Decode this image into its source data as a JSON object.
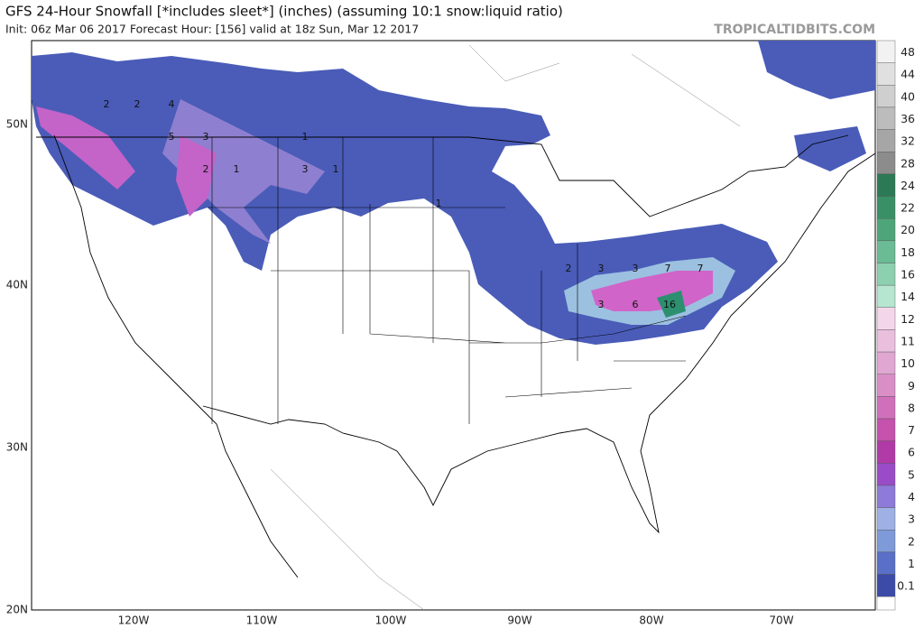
{
  "header": {
    "title": "GFS 24-Hour Snowfall [*includes sleet*] (inches) (assuming 10:1 snow:liquid ratio)",
    "subtitle": "Init: 06z Mar 06 2017   Forecast Hour: [156]   valid at 18z Sun, Mar 12 2017",
    "watermark": "TROPICALTIDBITS.COM"
  },
  "axes": {
    "latitudes": [
      "50N",
      "40N",
      "30N",
      "20N"
    ],
    "longitudes": [
      "120W",
      "110W",
      "100W",
      "90W",
      "80W",
      "70W"
    ]
  },
  "contour_labels": [
    "2",
    "2",
    "4",
    "5",
    "3",
    "2",
    "1",
    "1",
    "3",
    "1",
    "1",
    "2",
    "3",
    "3",
    "7",
    "7",
    "3",
    "6",
    "16"
  ],
  "colorbar": {
    "labels": [
      48,
      44,
      40,
      36,
      32,
      28,
      24,
      22,
      20,
      18,
      16,
      14,
      12,
      11,
      10,
      9,
      8,
      7,
      6,
      5,
      4,
      3,
      2,
      1,
      0.1
    ],
    "colors": [
      "#f2f2f2",
      "#e0e0e0",
      "#cfcfcf",
      "#bcbcbc",
      "#a6a6a6",
      "#8c8c8c",
      "#2c7a55",
      "#3a9066",
      "#4fa57a",
      "#6bbb94",
      "#8dd0b0",
      "#b6e5d0",
      "#f4d6ea",
      "#eabfde",
      "#e0a7d2",
      "#d98ec6",
      "#d070bb",
      "#c552ad",
      "#b03aa6",
      "#9a4cc8",
      "#8e7ad8",
      "#9eb0e4",
      "#7e9ad8",
      "#5a70c8",
      "#3c4aa8"
    ]
  }
}
